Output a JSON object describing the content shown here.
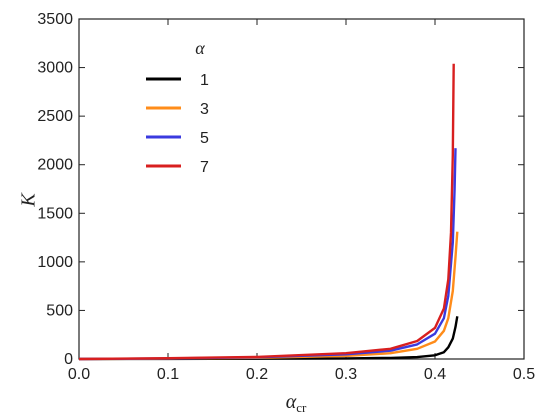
{
  "chart_data": {
    "type": "line",
    "xlabel": "α",
    "xlabel_sub": "cr",
    "ylabel": "K",
    "xlim": [
      0.0,
      0.5
    ],
    "ylim": [
      0,
      3500
    ],
    "x_ticks": [
      "0.0",
      "0.1",
      "0.2",
      "0.3",
      "0.4",
      "0.5"
    ],
    "y_ticks": [
      "0",
      "500",
      "1000",
      "1500",
      "2000",
      "2500",
      "3000",
      "3500"
    ],
    "legend": {
      "title": "α",
      "placement": "top-left"
    },
    "series": [
      {
        "name": "1",
        "color": "#000000",
        "points": [
          [
            0.0,
            0
          ],
          [
            0.1,
            1
          ],
          [
            0.2,
            3
          ],
          [
            0.3,
            6
          ],
          [
            0.35,
            11
          ],
          [
            0.38,
            20
          ],
          [
            0.4,
            38
          ],
          [
            0.41,
            70
          ],
          [
            0.415,
            120
          ],
          [
            0.42,
            210
          ],
          [
            0.423,
            330
          ],
          [
            0.425,
            440
          ]
        ]
      },
      {
        "name": "3",
        "color": "#ff8c1a",
        "points": [
          [
            0.0,
            0
          ],
          [
            0.1,
            4
          ],
          [
            0.2,
            12
          ],
          [
            0.3,
            32
          ],
          [
            0.35,
            60
          ],
          [
            0.38,
            105
          ],
          [
            0.4,
            180
          ],
          [
            0.41,
            290
          ],
          [
            0.415,
            420
          ],
          [
            0.42,
            700
          ],
          [
            0.423,
            1050
          ],
          [
            0.425,
            1310
          ]
        ]
      },
      {
        "name": "5",
        "color": "#3a3adf",
        "points": [
          [
            0.0,
            0
          ],
          [
            0.1,
            6
          ],
          [
            0.2,
            18
          ],
          [
            0.3,
            48
          ],
          [
            0.35,
            85
          ],
          [
            0.38,
            150
          ],
          [
            0.4,
            260
          ],
          [
            0.41,
            420
          ],
          [
            0.415,
            650
          ],
          [
            0.42,
            1200
          ],
          [
            0.422,
            1750
          ],
          [
            0.423,
            2170
          ]
        ]
      },
      {
        "name": "7",
        "color": "#d81f1f",
        "points": [
          [
            0.0,
            0
          ],
          [
            0.1,
            8
          ],
          [
            0.2,
            22
          ],
          [
            0.3,
            60
          ],
          [
            0.35,
            105
          ],
          [
            0.38,
            185
          ],
          [
            0.4,
            320
          ],
          [
            0.41,
            520
          ],
          [
            0.415,
            820
          ],
          [
            0.418,
            1300
          ],
          [
            0.42,
            2100
          ],
          [
            0.421,
            3040
          ]
        ]
      }
    ]
  }
}
